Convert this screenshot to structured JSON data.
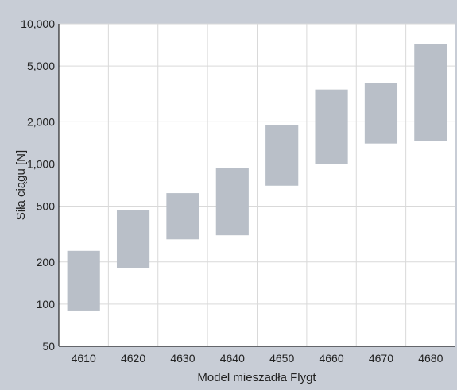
{
  "chart_data": {
    "type": "bar",
    "subtype": "floating-range",
    "title": "",
    "xlabel": "Model mieszadła Flygt",
    "ylabel": "Siła ciągu [N]",
    "yscale": "log",
    "ylim": [
      50,
      10000
    ],
    "y_ticks": [
      50,
      100,
      200,
      500,
      1000,
      2000,
      5000,
      10000
    ],
    "y_tick_labels": [
      "50",
      "100",
      "200",
      "500",
      "1,000",
      "2,000",
      "5,000",
      "10,000"
    ],
    "categories": [
      "4610",
      "4620",
      "4630",
      "4640",
      "4650",
      "4660",
      "4670",
      "4680"
    ],
    "ranges": [
      [
        90,
        240
      ],
      [
        180,
        470
      ],
      [
        290,
        620
      ],
      [
        310,
        930
      ],
      [
        700,
        1900
      ],
      [
        1000,
        3400
      ],
      [
        1400,
        3800
      ],
      [
        1450,
        7200
      ]
    ],
    "grid": true,
    "colors": {
      "background": "#c8cdd6",
      "plot_background": "#ffffff",
      "bar_fill": "#b9bfc8",
      "grid": "#d9d9d9",
      "axis": "#000000"
    }
  }
}
